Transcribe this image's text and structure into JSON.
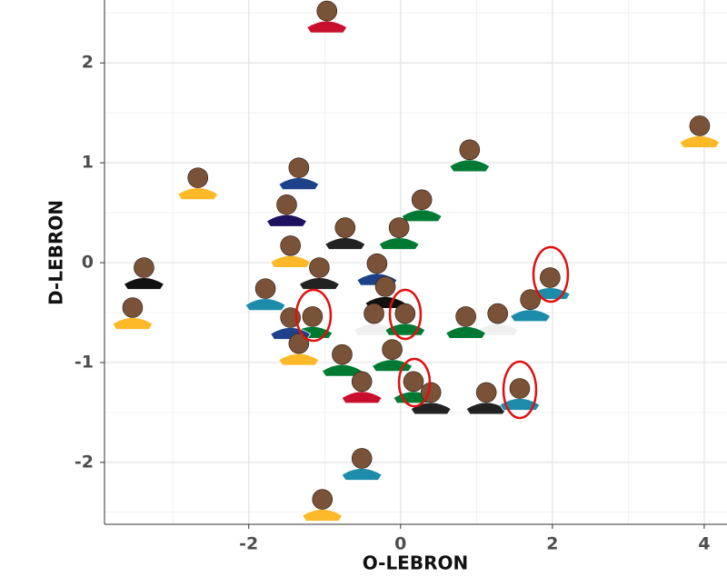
{
  "chart_data": {
    "type": "scatter",
    "x_label": "O-LEBRON",
    "y_label": "D-LEBRON",
    "xlim": [
      -3.9,
      4.3
    ],
    "ylim": [
      -2.62,
      2.63
    ],
    "xticks": [
      -2,
      0,
      2,
      4
    ],
    "yticks": [
      -2,
      -1,
      0,
      1,
      2
    ],
    "grid": true,
    "series": [
      {
        "x": [
          -0.97,
          3.94,
          -2.67,
          -1.34,
          0.91,
          0.28,
          -1.5,
          -0.73,
          -0.02,
          -3.38,
          -3.53,
          -1.45,
          -1.07,
          -1.78,
          -0.31,
          -0.2,
          1.97,
          1.71,
          1.28,
          0.86,
          -1.16,
          -1.45,
          -0.35,
          0.06,
          -1.34,
          -0.77,
          -0.11,
          -0.51,
          0.17,
          0.4,
          1.13,
          1.57,
          -0.51,
          -1.03
        ],
        "values": [
          2.52,
          1.37,
          0.85,
          0.95,
          1.13,
          0.63,
          0.58,
          0.35,
          0.35,
          -0.05,
          -0.45,
          0.17,
          -0.05,
          -0.26,
          -0.01,
          -0.24,
          -0.15,
          -0.37,
          -0.51,
          -0.54,
          -0.54,
          -0.55,
          -0.51,
          -0.51,
          -0.81,
          -0.92,
          -0.87,
          -1.19,
          -1.19,
          -1.3,
          -1.3,
          -1.26,
          -1.96,
          -2.37
        ],
        "colors": [
          "#c8102e",
          "#fdb927",
          "#fdb927",
          "#1d428a",
          "#007a33",
          "#007a33",
          "#1d1160",
          "#222222",
          "#007a33",
          "#111111",
          "#fdb927",
          "#fdb927",
          "#222222",
          "#1d8cab",
          "#1d428a",
          "#111111",
          "#1d8cab",
          "#1d8cab",
          "#f0f0f0",
          "#007a33",
          "#007a33",
          "#1d428a",
          "#f0f0f0",
          "#007a33",
          "#fdb927",
          "#007a33",
          "#007a33",
          "#c8102e",
          "#007a33",
          "#222222",
          "#222222",
          "#1d8cab",
          "#1d8cab",
          "#fdb927"
        ]
      }
    ]
  }
}
